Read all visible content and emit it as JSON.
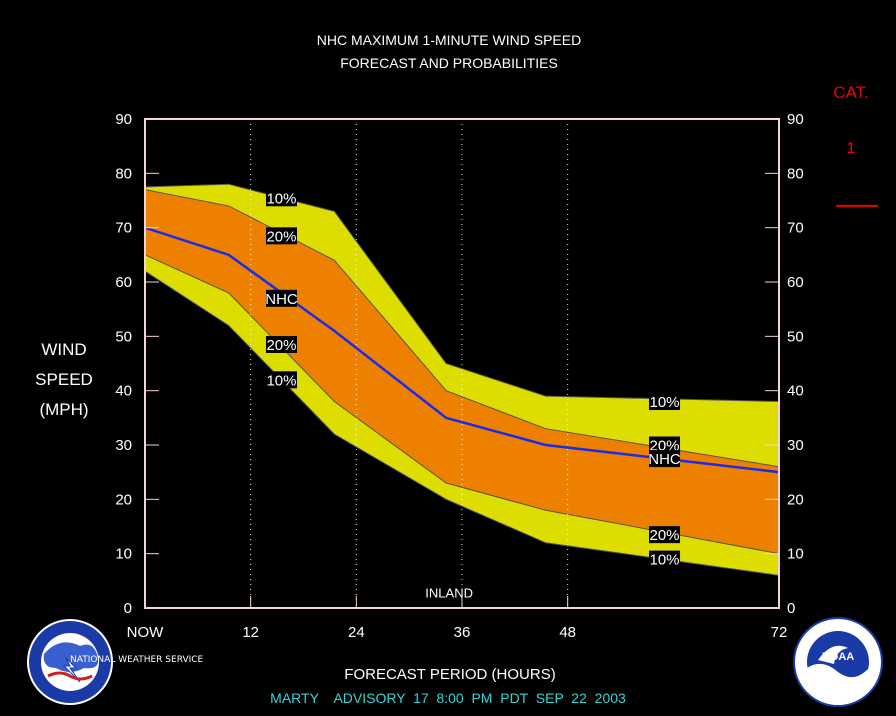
{
  "chart_data": {
    "type": "area",
    "title": [
      "NHC MAXIMUM 1-MINUTE WIND SPEED",
      "FORECAST AND PROBABILITIES"
    ],
    "ylabel": [
      "WIND",
      "SPEED",
      "(MPH)"
    ],
    "xlabel": "FORECAST PERIOD (HOURS)",
    "xlim": [
      0,
      72
    ],
    "ylim": [
      0,
      90
    ],
    "x_ticks": [
      0,
      12,
      24,
      36,
      48,
      72
    ],
    "x_tick_labels": [
      "NOW",
      "12",
      "24",
      "36",
      "48",
      "72"
    ],
    "y_ticks": [
      0,
      10,
      20,
      30,
      40,
      50,
      60,
      70,
      80,
      90
    ],
    "y_tick_labels": [
      "0",
      "10",
      "20",
      "30",
      "40",
      "50",
      "60",
      "70",
      "80",
      "90"
    ],
    "x": [
      0,
      9.5,
      21.5,
      34.2,
      45.5,
      72
    ],
    "bands": {
      "upper_10": [
        77.5,
        78,
        73,
        45,
        39,
        38
      ],
      "upper_20": [
        77,
        74,
        64,
        40,
        33,
        26
      ],
      "nhc": [
        70,
        65,
        51,
        35,
        30,
        25
      ],
      "lower_20": [
        65,
        58,
        38,
        23,
        18,
        10
      ],
      "lower_10": [
        62,
        52,
        32,
        20,
        12,
        6
      ]
    },
    "band_labels": [
      {
        "text": "10%",
        "x": 15.5,
        "y": 75.5
      },
      {
        "text": "20%",
        "x": 15.5,
        "y": 68.5
      },
      {
        "text": "NHC",
        "x": 15.5,
        "y": 57
      },
      {
        "text": "20%",
        "x": 15.5,
        "y": 48.5
      },
      {
        "text": "10%",
        "x": 15.5,
        "y": 42
      },
      {
        "text": "10%",
        "x": 59,
        "y": 38
      },
      {
        "text": "20%",
        "x": 59,
        "y": 30
      },
      {
        "text": "NHC",
        "x": 59,
        "y": 27.5
      },
      {
        "text": "20%",
        "x": 59,
        "y": 13.5
      },
      {
        "text": "10%",
        "x": 59,
        "y": 9
      }
    ],
    "annotation": {
      "text": "INLAND",
      "x": 34.2,
      "y": 2.5
    },
    "category": {
      "title": "CAT.",
      "levels": [
        {
          "label": "1",
          "wind": 74
        }
      ]
    },
    "colors": {
      "background": "#000000",
      "outer_band": "#DDDD00",
      "inner_band": "#EE8000",
      "nhc_line": "#1A2BEE",
      "frame": "#F4D6D6",
      "category": "#EE0000",
      "footer": "#33D6D6"
    }
  },
  "footer": {
    "advisory": "MARTY    ADVISORY  17  8:00  PM  PDT  SEP  22  2003"
  },
  "logos": {
    "left": {
      "name": "national-weather-service-logo",
      "text": "NATIONAL WEATHER SERVICE"
    },
    "right": {
      "name": "noaa-logo",
      "text": "NOAA"
    }
  }
}
